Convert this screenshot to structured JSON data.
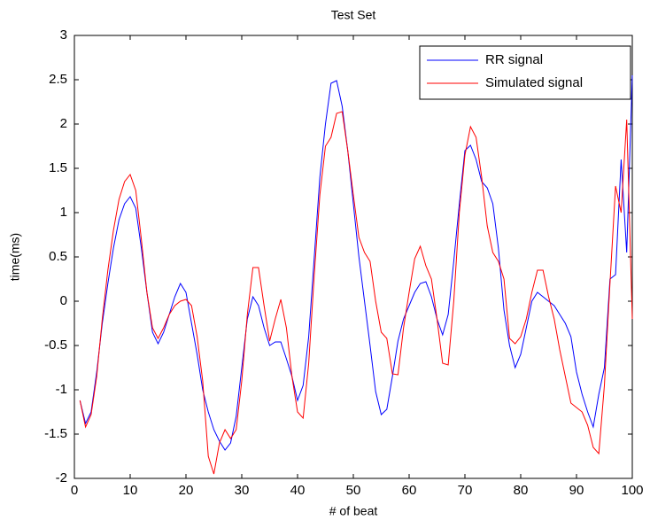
{
  "chart_data": {
    "type": "line",
    "title": "Test Set",
    "x_label": "# of beat",
    "y_label": "time(ms)",
    "x": [
      1,
      2,
      3,
      4,
      5,
      6,
      7,
      8,
      9,
      10,
      11,
      12,
      13,
      14,
      15,
      16,
      17,
      18,
      19,
      20,
      21,
      22,
      23,
      24,
      25,
      26,
      27,
      28,
      29,
      30,
      31,
      32,
      33,
      34,
      35,
      36,
      37,
      38,
      39,
      40,
      41,
      42,
      43,
      44,
      45,
      46,
      47,
      48,
      49,
      50,
      51,
      52,
      53,
      54,
      55,
      56,
      57,
      58,
      59,
      60,
      61,
      62,
      63,
      64,
      65,
      66,
      67,
      68,
      69,
      70,
      71,
      72,
      73,
      74,
      75,
      76,
      77,
      78,
      79,
      80,
      81,
      82,
      83,
      84,
      85,
      86,
      87,
      88,
      89,
      90,
      91,
      92,
      93,
      94,
      95,
      96,
      97,
      98,
      99,
      100
    ],
    "series": [
      {
        "name": "RR signal",
        "color": "#0000ff",
        "values": [
          -1.12,
          -1.38,
          -1.25,
          -0.8,
          -0.25,
          0.2,
          0.6,
          0.92,
          1.1,
          1.18,
          1.05,
          0.6,
          0.1,
          -0.35,
          -0.48,
          -0.35,
          -0.15,
          0.05,
          0.2,
          0.1,
          -0.25,
          -0.6,
          -1.0,
          -1.25,
          -1.45,
          -1.58,
          -1.68,
          -1.6,
          -1.3,
          -0.75,
          -0.2,
          0.05,
          -0.05,
          -0.3,
          -0.5,
          -0.46,
          -0.46,
          -0.65,
          -0.85,
          -1.12,
          -0.95,
          -0.4,
          0.5,
          1.4,
          2.0,
          2.46,
          2.49,
          2.2,
          1.7,
          1.1,
          0.5,
          0.0,
          -0.5,
          -1.02,
          -1.28,
          -1.22,
          -0.85,
          -0.45,
          -0.2,
          -0.05,
          0.1,
          0.2,
          0.22,
          0.05,
          -0.2,
          -0.38,
          -0.15,
          0.45,
          1.1,
          1.7,
          1.76,
          1.6,
          1.35,
          1.28,
          1.1,
          0.6,
          -0.1,
          -0.5,
          -0.75,
          -0.6,
          -0.3,
          0.0,
          0.1,
          0.05,
          0.0,
          -0.05,
          -0.15,
          -0.25,
          -0.4,
          -0.8,
          -1.05,
          -1.25,
          -1.42,
          -1.05,
          -0.75,
          0.25,
          0.3,
          1.6,
          0.55,
          2.55
        ]
      },
      {
        "name": "Simulated signal",
        "color": "#ff0000",
        "values": [
          -1.12,
          -1.42,
          -1.28,
          -0.85,
          -0.2,
          0.35,
          0.8,
          1.15,
          1.35,
          1.43,
          1.25,
          0.7,
          0.1,
          -0.3,
          -0.42,
          -0.3,
          -0.15,
          -0.05,
          0.0,
          0.02,
          -0.05,
          -0.4,
          -0.9,
          -1.75,
          -1.95,
          -1.6,
          -1.45,
          -1.55,
          -1.45,
          -0.9,
          -0.15,
          0.38,
          0.38,
          -0.05,
          -0.45,
          -0.2,
          0.02,
          -0.3,
          -0.85,
          -1.25,
          -1.32,
          -0.7,
          0.3,
          1.2,
          1.75,
          1.85,
          2.12,
          2.14,
          1.7,
          1.2,
          0.72,
          0.55,
          0.45,
          0.0,
          -0.35,
          -0.42,
          -0.82,
          -0.83,
          -0.3,
          0.1,
          0.48,
          0.62,
          0.4,
          0.25,
          -0.2,
          -0.7,
          -0.72,
          0.0,
          1.0,
          1.65,
          1.97,
          1.85,
          1.4,
          0.85,
          0.55,
          0.45,
          0.25,
          -0.42,
          -0.48,
          -0.4,
          -0.2,
          0.1,
          0.35,
          0.35,
          0.05,
          -0.2,
          -0.55,
          -0.85,
          -1.15,
          -1.2,
          -1.25,
          -1.4,
          -1.65,
          -1.72,
          -0.95,
          0.2,
          1.3,
          1.0,
          2.05,
          -0.2
        ]
      }
    ],
    "xlim": [
      0,
      100
    ],
    "xticks": [
      0,
      10,
      20,
      30,
      40,
      50,
      60,
      70,
      80,
      90,
      100
    ],
    "ylim": [
      -2,
      3
    ],
    "yticks": [
      -2,
      -1.5,
      -1,
      -0.5,
      0,
      0.5,
      1,
      1.5,
      2,
      2.5,
      3
    ],
    "legend": "upper right"
  }
}
